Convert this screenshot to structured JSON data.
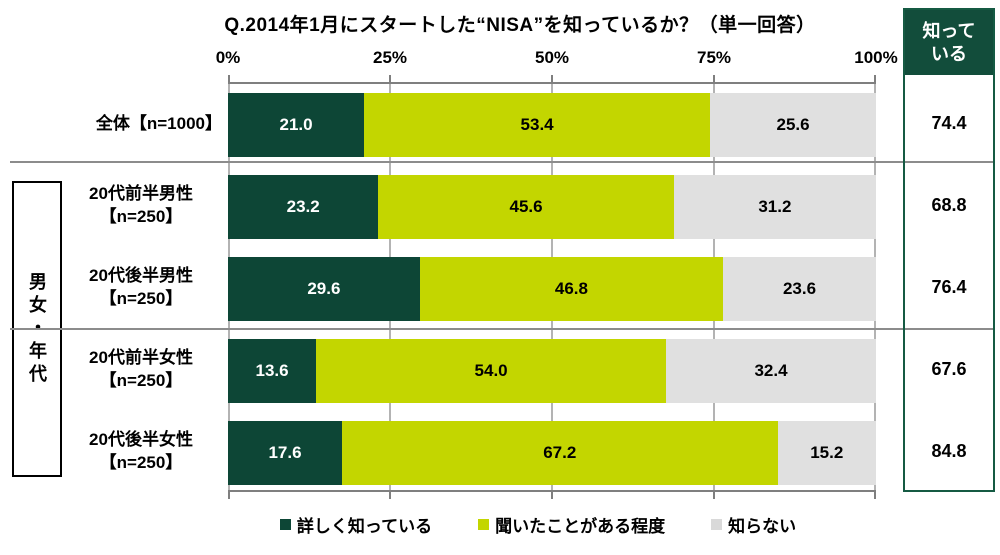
{
  "title": "Q.2014年1月にスタートした“NISA”を知っているか？（単一回答）",
  "x_axis": {
    "ticks": [
      "0%",
      "25%",
      "50%",
      "75%",
      "100%"
    ]
  },
  "group_box_label": "男女・年代",
  "known_column": {
    "header_line1": "知って",
    "header_line2": "いる"
  },
  "legend": {
    "items": [
      {
        "label": "詳しく知っている",
        "color": "#0d4636"
      },
      {
        "label": "聞いたことがある程度",
        "color": "#c3d600"
      },
      {
        "label": "知らない",
        "color": "#d9d9d9"
      }
    ]
  },
  "colors": {
    "segment_know_well": "#0d4636",
    "segment_heard": "#c3d600",
    "segment_dont_know": "#e0e0e0",
    "known_header_bg": "#124d3b",
    "known_box_border": "#155a43",
    "gridline": "#b3b3b3",
    "axis_line": "#7f7f7f"
  },
  "rows": [
    {
      "label1": "全体【n=1000】",
      "label2": "",
      "seg1": "21.0",
      "seg2": "53.4",
      "seg3": "25.6",
      "known": "74.4",
      "w1": 21.0,
      "w2": 53.4,
      "w3": 25.6
    },
    {
      "label1": "20代前半男性",
      "label2": "【n=250】",
      "seg1": "23.2",
      "seg2": "45.6",
      "seg3": "31.2",
      "known": "68.8",
      "w1": 23.2,
      "w2": 45.6,
      "w3": 31.2
    },
    {
      "label1": "20代後半男性",
      "label2": "【n=250】",
      "seg1": "29.6",
      "seg2": "46.8",
      "seg3": "23.6",
      "known": "76.4",
      "w1": 29.6,
      "w2": 46.8,
      "w3": 23.6
    },
    {
      "label1": "20代前半女性",
      "label2": "【n=250】",
      "seg1": "13.6",
      "seg2": "54.0",
      "seg3": "32.4",
      "known": "67.6",
      "w1": 13.6,
      "w2": 54.0,
      "w3": 32.4
    },
    {
      "label1": "20代後半女性",
      "label2": "【n=250】",
      "seg1": "17.6",
      "seg2": "67.2",
      "seg3": "15.2",
      "known": "84.8",
      "w1": 17.6,
      "w2": 67.2,
      "w3": 15.2
    }
  ],
  "chart_data": {
    "type": "bar",
    "stacked": true,
    "orientation": "horizontal",
    "title": "Q.2014年1月にスタートした“NISA”を知っているか？（単一回答）",
    "categories": [
      "全体【n=1000】",
      "20代前半男性【n=250】",
      "20代後半男性【n=250】",
      "20代前半女性【n=250】",
      "20代後半女性【n=250】"
    ],
    "series": [
      {
        "name": "詳しく知っている",
        "values": [
          21.0,
          23.2,
          29.6,
          13.6,
          17.6
        ]
      },
      {
        "name": "聞いたことがある程度",
        "values": [
          53.4,
          45.6,
          46.8,
          54.0,
          67.2
        ]
      },
      {
        "name": "知らない",
        "values": [
          25.6,
          31.2,
          23.6,
          32.4,
          15.2
        ]
      }
    ],
    "known_totals": {
      "label": "知っている",
      "values": [
        74.4,
        68.8,
        76.4,
        67.6,
        84.8
      ]
    },
    "xlim": [
      0,
      100
    ],
    "x_tick_labels": [
      "0%",
      "25%",
      "50%",
      "75%",
      "100%"
    ],
    "grid": true,
    "legend_position": "bottom",
    "group_label": "男女・年代"
  }
}
